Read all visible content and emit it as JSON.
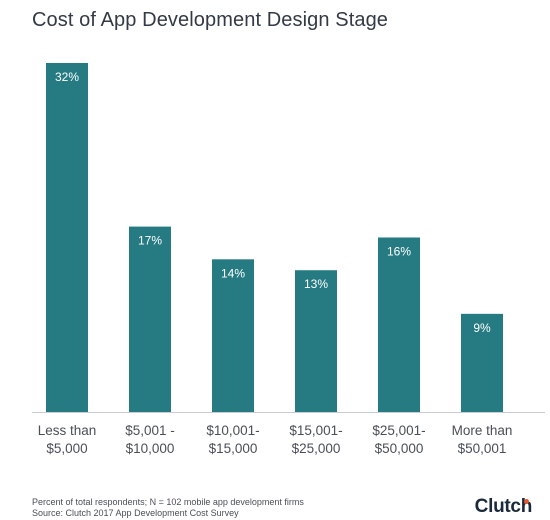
{
  "chart_data": {
    "type": "bar",
    "title": "Cost of App Development Design Stage",
    "categories": [
      [
        "Less than",
        "$5,000"
      ],
      [
        "$5,001 -",
        "$10,000"
      ],
      [
        "$10,001-",
        "$15,000"
      ],
      [
        "$15,001-",
        "$25,000"
      ],
      [
        "$25,001-",
        "$50,000"
      ],
      [
        "More than",
        "$50,001"
      ]
    ],
    "values": [
      32,
      17,
      14,
      13,
      16,
      9
    ],
    "value_labels": [
      "32%",
      "17%",
      "14%",
      "13%",
      "16%",
      "9%"
    ],
    "xlabel": "",
    "ylabel": "",
    "ylim": [
      0,
      32
    ],
    "grid": false,
    "bar_color": "#267b82"
  },
  "footnote": {
    "line1": "Percent of total respondents; N = 102 mobile app development firms",
    "line2": "Source: Clutch 2017 App Development Cost Survey"
  },
  "brand": {
    "text": "Clutch",
    "accent_color": "#e4572e"
  }
}
